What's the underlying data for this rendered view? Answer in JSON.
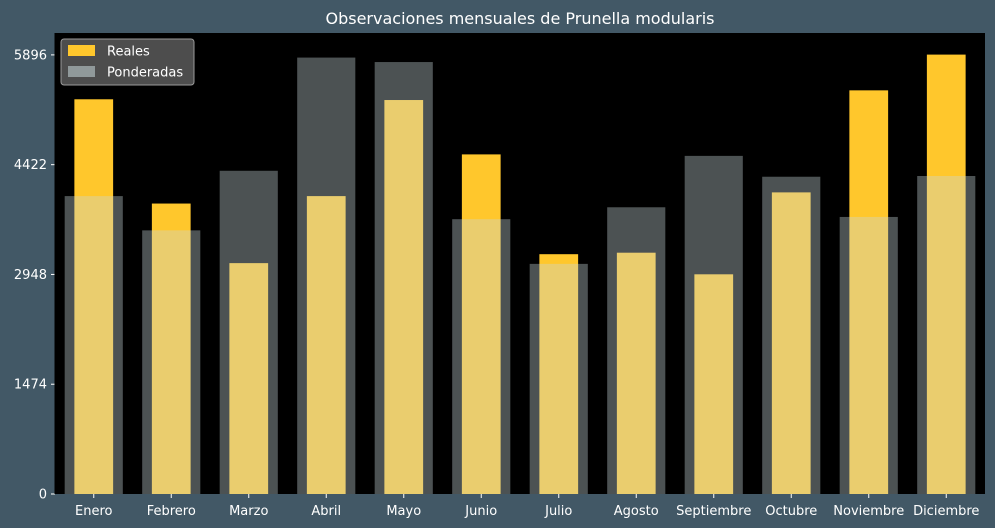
{
  "chart_data": {
    "type": "bar",
    "title": "Observaciones mensuales de Prunella modularis",
    "xlabel": "",
    "ylabel": "",
    "categories": [
      "Enero",
      "Febrero",
      "Marzo",
      "Abril",
      "Mayo",
      "Junio",
      "Julio",
      "Agosto",
      "Septiembre",
      "Octubre",
      "Noviembre",
      "Diciembre"
    ],
    "series": [
      {
        "name": "Reales",
        "values": [
          5300,
          3900,
          3100,
          4000,
          5290,
          4560,
          3220,
          3240,
          2950,
          4050,
          5420,
          5900
        ],
        "color": "#ffc72c"
      },
      {
        "name": "Ponderadas",
        "values": [
          4000,
          3540,
          4340,
          5860,
          5800,
          3690,
          3090,
          3850,
          4540,
          4260,
          3720,
          4270
        ],
        "color": "#c9d8db"
      }
    ],
    "ylim": [
      0,
      6190
    ],
    "yticks": [
      0,
      1474,
      2948,
      4422,
      5896
    ],
    "grid": false,
    "legend_position": "top-left",
    "background": "#000000",
    "figure_background": "#425866"
  }
}
